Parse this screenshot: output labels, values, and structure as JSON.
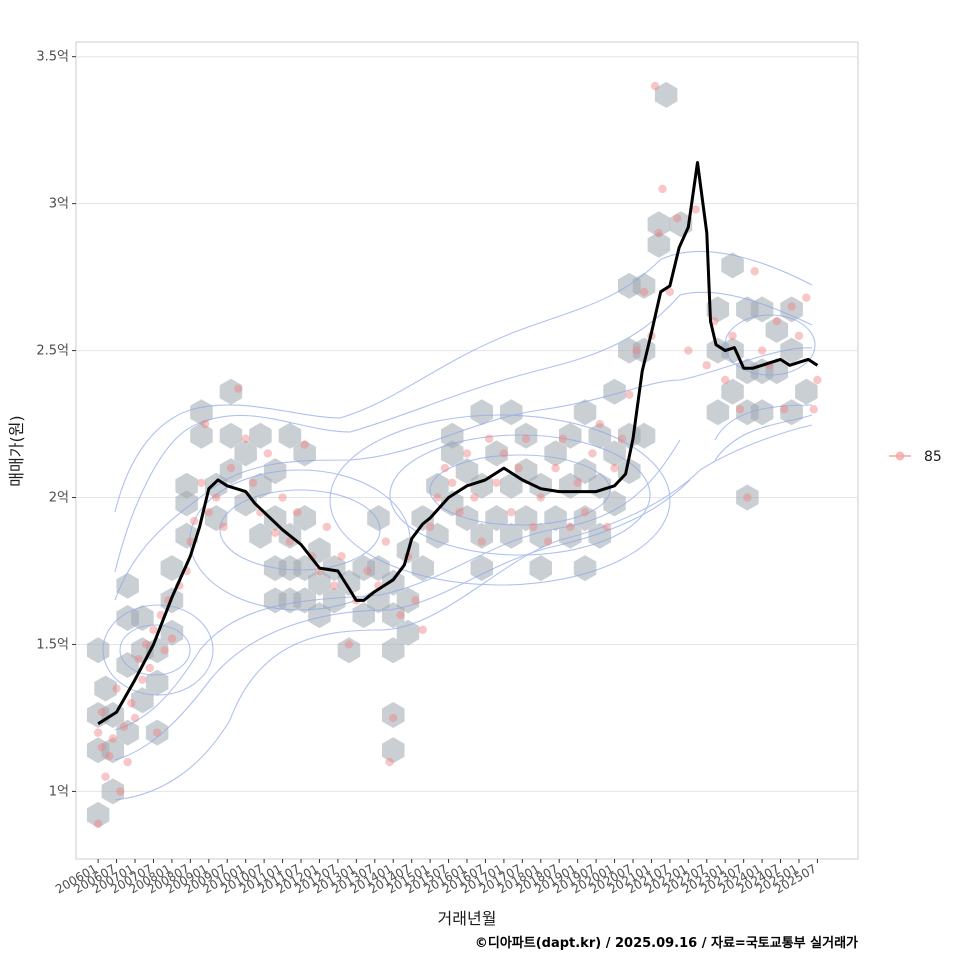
{
  "chart_data": {
    "type": "scatter",
    "xlabel": "거래년월",
    "ylabel": "매매가(원)",
    "caption": "©디아파트(dapt.kr) / 2025.09.16 / 자료=국토교통부 실거래가",
    "ylim": [
      0.77,
      3.55
    ],
    "y_ticks": [
      1,
      1.5,
      2,
      2.5,
      3,
      3.5
    ],
    "y_tick_labels": [
      "1억",
      "1.5억",
      "2억",
      "2.5억",
      "3억",
      "3.5억"
    ],
    "x_tick_labels": [
      "200601",
      "200607",
      "200701",
      "200707",
      "200801",
      "200807",
      "200901",
      "200907",
      "201001",
      "201007",
      "201101",
      "201107",
      "201201",
      "201207",
      "201301",
      "201307",
      "201401",
      "201407",
      "201501",
      "201507",
      "201601",
      "201607",
      "201701",
      "201707",
      "201801",
      "201807",
      "201901",
      "201907",
      "202001",
      "202007",
      "202101",
      "202107",
      "202201",
      "202207",
      "202301",
      "202307",
      "202401",
      "202407",
      "202501",
      "202507"
    ],
    "legend": [
      {
        "label": "85",
        "color": "#f4a6a6"
      }
    ],
    "colors": {
      "point": "#f08080",
      "hex": "#9ea7b0",
      "contour": "#8ea8e8",
      "trend": "#000000",
      "grid": "#e5e5e5",
      "panel_border": "#cccccc"
    },
    "trend_line": {
      "name": "moving average",
      "x": [
        2006.0,
        2006.5,
        2007.0,
        2007.5,
        2008.0,
        2008.5,
        2008.75,
        2009.0,
        2009.25,
        2009.5,
        2010.0,
        2010.25,
        2010.5,
        2011.0,
        2011.5,
        2012.0,
        2012.5,
        2012.8,
        2013.0,
        2013.2,
        2013.5,
        2014.0,
        2014.3,
        2014.5,
        2014.8,
        2015.0,
        2015.5,
        2016.0,
        2016.5,
        2017.0,
        2017.5,
        2018.0,
        2018.5,
        2019.0,
        2019.5,
        2020.0,
        2020.3,
        2020.5,
        2020.75,
        2021.0,
        2021.25,
        2021.5,
        2021.75,
        2022.0,
        2022.25,
        2022.5,
        2022.6,
        2022.75,
        2023.0,
        2023.25,
        2023.5,
        2023.75,
        2024.0,
        2024.25,
        2024.5,
        2024.75,
        2025.0,
        2025.25,
        2025.5
      ],
      "y": [
        1.23,
        1.27,
        1.38,
        1.5,
        1.66,
        1.8,
        1.9,
        2.03,
        2.06,
        2.04,
        2.02,
        1.98,
        1.95,
        1.89,
        1.84,
        1.76,
        1.75,
        1.69,
        1.65,
        1.65,
        1.68,
        1.72,
        1.77,
        1.86,
        1.91,
        1.93,
        2.0,
        2.04,
        2.06,
        2.1,
        2.06,
        2.03,
        2.02,
        2.02,
        2.02,
        2.04,
        2.08,
        2.2,
        2.43,
        2.56,
        2.7,
        2.72,
        2.85,
        2.92,
        3.14,
        2.9,
        2.6,
        2.52,
        2.5,
        2.51,
        2.44,
        2.44,
        2.45,
        2.46,
        2.47,
        2.45,
        2.46,
        2.47,
        2.45
      ]
    },
    "points_85": [
      [
        2006.0,
        1.2
      ],
      [
        2006.0,
        0.89
      ],
      [
        2006.1,
        1.15
      ],
      [
        2006.1,
        1.27
      ],
      [
        2006.2,
        1.05
      ],
      [
        2006.3,
        1.12
      ],
      [
        2006.4,
        1.18
      ],
      [
        2006.5,
        1.35
      ],
      [
        2006.6,
        1.0
      ],
      [
        2006.7,
        1.22
      ],
      [
        2006.8,
        1.1
      ],
      [
        2006.9,
        1.3
      ],
      [
        2007.0,
        1.25
      ],
      [
        2007.1,
        1.45
      ],
      [
        2007.2,
        1.38
      ],
      [
        2007.3,
        1.5
      ],
      [
        2007.4,
        1.42
      ],
      [
        2007.5,
        1.55
      ],
      [
        2007.6,
        1.2
      ],
      [
        2007.7,
        1.6
      ],
      [
        2007.8,
        1.48
      ],
      [
        2007.9,
        1.65
      ],
      [
        2008.0,
        1.52
      ],
      [
        2008.2,
        1.7
      ],
      [
        2008.4,
        1.75
      ],
      [
        2008.5,
        1.85
      ],
      [
        2008.6,
        1.92
      ],
      [
        2008.8,
        2.05
      ],
      [
        2008.9,
        2.25
      ],
      [
        2009.0,
        1.95
      ],
      [
        2009.2,
        2.0
      ],
      [
        2009.4,
        1.9
      ],
      [
        2009.6,
        2.1
      ],
      [
        2009.8,
        2.37
      ],
      [
        2010.0,
        2.2
      ],
      [
        2010.2,
        2.05
      ],
      [
        2010.4,
        1.95
      ],
      [
        2010.6,
        2.15
      ],
      [
        2010.8,
        1.88
      ],
      [
        2011.0,
        2.0
      ],
      [
        2011.2,
        1.85
      ],
      [
        2011.4,
        1.95
      ],
      [
        2011.6,
        2.18
      ],
      [
        2011.8,
        1.8
      ],
      [
        2012.0,
        1.75
      ],
      [
        2012.2,
        1.9
      ],
      [
        2012.4,
        1.7
      ],
      [
        2012.6,
        1.8
      ],
      [
        2012.8,
        1.5
      ],
      [
        2013.0,
        1.65
      ],
      [
        2013.3,
        1.75
      ],
      [
        2013.6,
        1.7
      ],
      [
        2013.8,
        1.85
      ],
      [
        2013.9,
        1.1
      ],
      [
        2014.0,
        1.25
      ],
      [
        2014.2,
        1.6
      ],
      [
        2014.4,
        1.8
      ],
      [
        2014.6,
        1.65
      ],
      [
        2014.8,
        1.55
      ],
      [
        2015.0,
        1.9
      ],
      [
        2015.2,
        2.0
      ],
      [
        2015.4,
        2.1
      ],
      [
        2015.6,
        2.05
      ],
      [
        2015.8,
        1.95
      ],
      [
        2016.0,
        2.15
      ],
      [
        2016.2,
        2.0
      ],
      [
        2016.4,
        1.85
      ],
      [
        2016.6,
        2.2
      ],
      [
        2016.8,
        2.05
      ],
      [
        2017.0,
        2.15
      ],
      [
        2017.2,
        1.95
      ],
      [
        2017.4,
        2.1
      ],
      [
        2017.6,
        2.2
      ],
      [
        2017.8,
        1.9
      ],
      [
        2018.0,
        2.0
      ],
      [
        2018.2,
        1.85
      ],
      [
        2018.4,
        2.1
      ],
      [
        2018.6,
        2.2
      ],
      [
        2018.8,
        1.9
      ],
      [
        2019.0,
        2.05
      ],
      [
        2019.2,
        1.95
      ],
      [
        2019.4,
        2.15
      ],
      [
        2019.6,
        2.25
      ],
      [
        2019.8,
        1.9
      ],
      [
        2020.0,
        2.1
      ],
      [
        2020.2,
        2.2
      ],
      [
        2020.4,
        2.35
      ],
      [
        2020.6,
        2.5
      ],
      [
        2020.8,
        2.7
      ],
      [
        2021.0,
        2.55
      ],
      [
        2021.1,
        3.4
      ],
      [
        2021.2,
        2.9
      ],
      [
        2021.3,
        3.05
      ],
      [
        2021.5,
        2.7
      ],
      [
        2021.7,
        2.95
      ],
      [
        2022.0,
        2.5
      ],
      [
        2022.2,
        2.98
      ],
      [
        2022.5,
        2.45
      ],
      [
        2022.7,
        2.6
      ],
      [
        2023.0,
        2.4
      ],
      [
        2023.2,
        2.55
      ],
      [
        2023.4,
        2.3
      ],
      [
        2023.6,
        2.0
      ],
      [
        2023.8,
        2.77
      ],
      [
        2024.0,
        2.5
      ],
      [
        2024.2,
        2.45
      ],
      [
        2024.4,
        2.6
      ],
      [
        2024.6,
        2.3
      ],
      [
        2024.8,
        2.65
      ],
      [
        2025.0,
        2.55
      ],
      [
        2025.2,
        2.68
      ],
      [
        2025.4,
        2.3
      ],
      [
        2025.5,
        2.4
      ]
    ],
    "hex_bins": [
      [
        2006.0,
        0.92
      ],
      [
        2006.0,
        1.14
      ],
      [
        2006.0,
        1.26
      ],
      [
        2006.0,
        1.48
      ],
      [
        2006.2,
        1.35
      ],
      [
        2006.4,
        1.0
      ],
      [
        2006.4,
        1.14
      ],
      [
        2006.4,
        1.26
      ],
      [
        2006.8,
        1.2
      ],
      [
        2006.8,
        1.43
      ],
      [
        2006.8,
        1.59
      ],
      [
        2006.8,
        1.7
      ],
      [
        2007.2,
        1.31
      ],
      [
        2007.2,
        1.48
      ],
      [
        2007.2,
        1.59
      ],
      [
        2007.6,
        1.2
      ],
      [
        2007.6,
        1.37
      ],
      [
        2007.6,
        1.48
      ],
      [
        2008.0,
        1.54
      ],
      [
        2008.0,
        1.65
      ],
      [
        2008.0,
        1.76
      ],
      [
        2008.4,
        1.87
      ],
      [
        2008.4,
        1.98
      ],
      [
        2008.4,
        2.04
      ],
      [
        2008.8,
        2.21
      ],
      [
        2008.8,
        2.29
      ],
      [
        2009.2,
        1.93
      ],
      [
        2009.2,
        2.04
      ],
      [
        2009.6,
        2.09
      ],
      [
        2009.6,
        2.21
      ],
      [
        2009.6,
        2.36
      ],
      [
        2010.0,
        1.98
      ],
      [
        2010.0,
        2.15
      ],
      [
        2010.4,
        1.87
      ],
      [
        2010.4,
        2.04
      ],
      [
        2010.4,
        2.21
      ],
      [
        2010.8,
        1.65
      ],
      [
        2010.8,
        1.76
      ],
      [
        2010.8,
        1.93
      ],
      [
        2010.8,
        2.09
      ],
      [
        2011.2,
        1.65
      ],
      [
        2011.2,
        1.76
      ],
      [
        2011.2,
        1.87
      ],
      [
        2011.2,
        2.21
      ],
      [
        2011.6,
        1.65
      ],
      [
        2011.6,
        1.76
      ],
      [
        2011.6,
        1.93
      ],
      [
        2011.6,
        2.15
      ],
      [
        2012.0,
        1.6
      ],
      [
        2012.0,
        1.71
      ],
      [
        2012.0,
        1.82
      ],
      [
        2012.4,
        1.65
      ],
      [
        2012.4,
        1.76
      ],
      [
        2012.8,
        1.48
      ],
      [
        2012.8,
        1.71
      ],
      [
        2013.2,
        1.6
      ],
      [
        2013.2,
        1.76
      ],
      [
        2013.6,
        1.65
      ],
      [
        2013.6,
        1.76
      ],
      [
        2013.6,
        1.93
      ],
      [
        2014.0,
        1.14
      ],
      [
        2014.0,
        1.26
      ],
      [
        2014.0,
        1.48
      ],
      [
        2014.0,
        1.6
      ],
      [
        2014.0,
        1.71
      ],
      [
        2014.4,
        1.54
      ],
      [
        2014.4,
        1.65
      ],
      [
        2014.4,
        1.82
      ],
      [
        2014.8,
        1.76
      ],
      [
        2014.8,
        1.93
      ],
      [
        2015.2,
        1.87
      ],
      [
        2015.2,
        2.04
      ],
      [
        2015.6,
        1.98
      ],
      [
        2015.6,
        2.15
      ],
      [
        2015.6,
        2.21
      ],
      [
        2016.0,
        1.93
      ],
      [
        2016.0,
        2.09
      ],
      [
        2016.4,
        1.76
      ],
      [
        2016.4,
        1.87
      ],
      [
        2016.4,
        2.04
      ],
      [
        2016.4,
        2.29
      ],
      [
        2016.8,
        1.93
      ],
      [
        2016.8,
        2.15
      ],
      [
        2017.2,
        1.87
      ],
      [
        2017.2,
        2.04
      ],
      [
        2017.2,
        2.29
      ],
      [
        2017.6,
        1.93
      ],
      [
        2017.6,
        2.09
      ],
      [
        2017.6,
        2.21
      ],
      [
        2018.0,
        1.76
      ],
      [
        2018.0,
        1.87
      ],
      [
        2018.0,
        2.04
      ],
      [
        2018.4,
        1.93
      ],
      [
        2018.4,
        2.15
      ],
      [
        2018.8,
        1.87
      ],
      [
        2018.8,
        2.04
      ],
      [
        2018.8,
        2.21
      ],
      [
        2019.2,
        1.76
      ],
      [
        2019.2,
        1.93
      ],
      [
        2019.2,
        2.09
      ],
      [
        2019.2,
        2.29
      ],
      [
        2019.6,
        1.87
      ],
      [
        2019.6,
        2.04
      ],
      [
        2019.6,
        2.21
      ],
      [
        2020.0,
        1.98
      ],
      [
        2020.0,
        2.15
      ],
      [
        2020.0,
        2.36
      ],
      [
        2020.4,
        2.09
      ],
      [
        2020.4,
        2.21
      ],
      [
        2020.4,
        2.5
      ],
      [
        2020.4,
        2.72
      ],
      [
        2020.8,
        2.21
      ],
      [
        2020.8,
        2.5
      ],
      [
        2020.8,
        2.72
      ],
      [
        2021.2,
        2.86
      ],
      [
        2021.2,
        2.93
      ],
      [
        2021.4,
        3.37
      ],
      [
        2021.8,
        2.93
      ],
      [
        2022.8,
        2.29
      ],
      [
        2022.8,
        2.5
      ],
      [
        2022.8,
        2.64
      ],
      [
        2023.2,
        2.36
      ],
      [
        2023.2,
        2.5
      ],
      [
        2023.2,
        2.79
      ],
      [
        2023.6,
        2.0
      ],
      [
        2023.6,
        2.29
      ],
      [
        2023.6,
        2.43
      ],
      [
        2023.6,
        2.64
      ],
      [
        2024.0,
        2.29
      ],
      [
        2024.0,
        2.43
      ],
      [
        2024.0,
        2.64
      ],
      [
        2024.4,
        2.43
      ],
      [
        2024.4,
        2.57
      ],
      [
        2024.8,
        2.29
      ],
      [
        2024.8,
        2.5
      ],
      [
        2024.8,
        2.64
      ],
      [
        2025.2,
        2.36
      ]
    ]
  }
}
